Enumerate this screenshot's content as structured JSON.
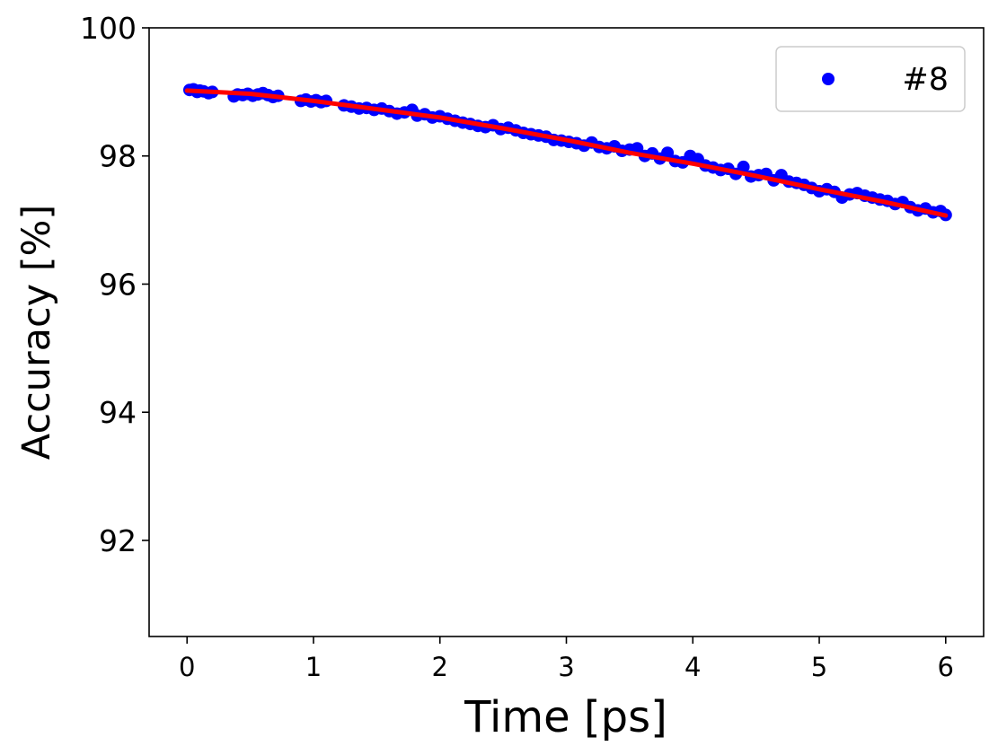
{
  "chart_data": {
    "type": "scatter",
    "title": "",
    "xlabel": "Time [ps]",
    "ylabel": "Accuracy [%]",
    "xlim": [
      -0.3,
      6.3
    ],
    "ylim": [
      90.5,
      100
    ],
    "xticks": [
      0,
      1,
      2,
      3,
      4,
      5,
      6
    ],
    "yticks": [
      92,
      94,
      96,
      98,
      100
    ],
    "grid": false,
    "legend_position": "top-right",
    "series": [
      {
        "name": "#8",
        "kind": "points",
        "color": "#0000ff",
        "x": [
          0.02,
          0.05,
          0.08,
          0.1,
          0.13,
          0.17,
          0.2,
          0.37,
          0.4,
          0.44,
          0.48,
          0.52,
          0.56,
          0.6,
          0.64,
          0.68,
          0.72,
          0.9,
          0.94,
          0.98,
          1.02,
          1.06,
          1.1,
          1.24,
          1.3,
          1.36,
          1.42,
          1.48,
          1.54,
          1.6,
          1.66,
          1.72,
          1.78,
          1.82,
          1.88,
          1.94,
          2.0,
          2.06,
          2.12,
          2.18,
          2.24,
          2.3,
          2.36,
          2.42,
          2.48,
          2.54,
          2.6,
          2.66,
          2.72,
          2.78,
          2.84,
          2.9,
          2.96,
          3.02,
          3.08,
          3.14,
          3.2,
          3.26,
          3.32,
          3.38,
          3.44,
          3.5,
          3.56,
          3.62,
          3.68,
          3.74,
          3.8,
          3.86,
          3.92,
          3.98,
          4.04,
          4.1,
          4.16,
          4.22,
          4.28,
          4.34,
          4.4,
          4.46,
          4.52,
          4.58,
          4.64,
          4.7,
          4.76,
          4.82,
          4.88,
          4.94,
          5.0,
          5.06,
          5.12,
          5.18,
          5.24,
          5.3,
          5.36,
          5.42,
          5.48,
          5.54,
          5.6,
          5.66,
          5.72,
          5.78,
          5.84,
          5.9,
          5.96,
          6.0
        ],
        "y": [
          99.03,
          99.04,
          99.0,
          99.02,
          99.01,
          98.98,
          99.0,
          98.93,
          98.96,
          98.95,
          98.97,
          98.94,
          98.96,
          98.98,
          98.95,
          98.92,
          98.94,
          98.86,
          98.88,
          98.85,
          98.87,
          98.84,
          98.86,
          98.79,
          98.77,
          98.74,
          98.75,
          98.72,
          98.74,
          98.7,
          98.66,
          98.68,
          98.72,
          98.63,
          98.65,
          98.6,
          98.62,
          98.58,
          98.55,
          98.52,
          98.5,
          98.47,
          98.45,
          98.48,
          98.42,
          98.44,
          98.4,
          98.36,
          98.34,
          98.32,
          98.3,
          98.25,
          98.24,
          98.22,
          98.2,
          98.16,
          98.21,
          98.14,
          98.12,
          98.15,
          98.08,
          98.1,
          98.12,
          98.0,
          98.04,
          97.96,
          98.05,
          97.92,
          97.9,
          98.0,
          97.95,
          97.85,
          97.82,
          97.78,
          97.8,
          97.72,
          97.83,
          97.68,
          97.7,
          97.72,
          97.62,
          97.7,
          97.6,
          97.58,
          97.55,
          97.5,
          97.45,
          97.48,
          97.44,
          97.35,
          97.4,
          97.42,
          97.38,
          97.35,
          97.32,
          97.3,
          97.25,
          97.28,
          97.2,
          97.15,
          97.18,
          97.12,
          97.14,
          97.08
        ]
      },
      {
        "name": "",
        "kind": "fit-line",
        "color": "#ff0000",
        "x": [
          0.0,
          0.5,
          1.0,
          1.5,
          2.0,
          2.5,
          3.0,
          3.5,
          4.0,
          4.5,
          5.0,
          5.5,
          6.0
        ],
        "y": [
          99.02,
          98.97,
          98.86,
          98.73,
          98.6,
          98.43,
          98.25,
          98.05,
          97.88,
          97.69,
          97.48,
          97.29,
          97.07
        ]
      }
    ]
  }
}
